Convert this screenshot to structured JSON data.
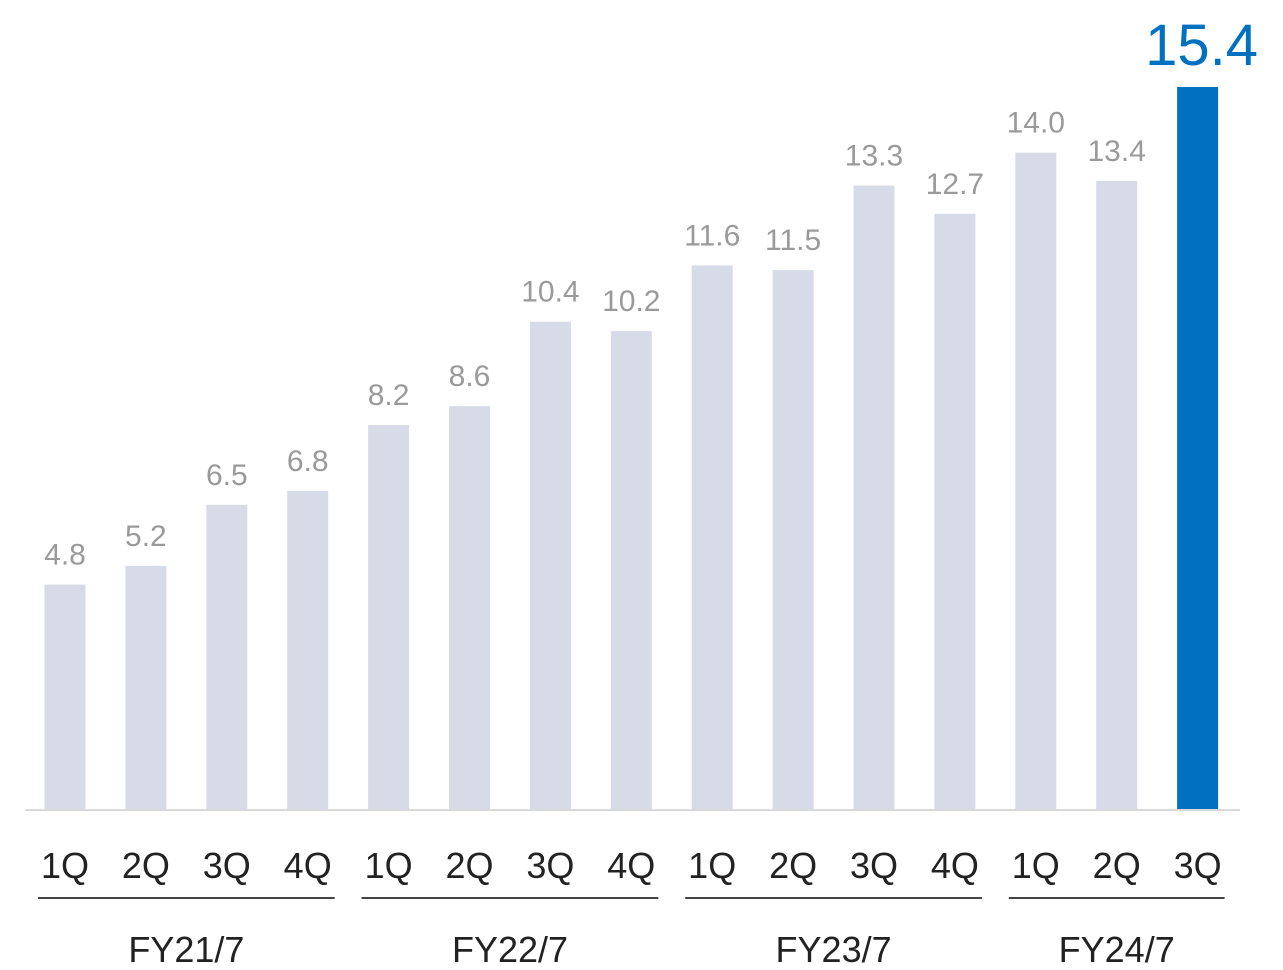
{
  "chart_data": {
    "type": "bar",
    "categories": [
      "1Q",
      "2Q",
      "3Q",
      "4Q",
      "1Q",
      "2Q",
      "3Q",
      "4Q",
      "1Q",
      "2Q",
      "3Q",
      "4Q",
      "1Q",
      "2Q",
      "3Q"
    ],
    "values": [
      4.8,
      5.2,
      6.5,
      6.8,
      8.2,
      8.6,
      10.4,
      10.2,
      11.6,
      11.5,
      13.3,
      12.7,
      14.0,
      13.4,
      15.4
    ],
    "value_labels": [
      "4.8",
      "5.2",
      "6.5",
      "6.8",
      "8.2",
      "8.6",
      "10.4",
      "10.2",
      "11.6",
      "11.5",
      "13.3",
      "12.7",
      "14.0",
      "13.4",
      "15.4"
    ],
    "groups": [
      {
        "label": "FY21/7",
        "count": 4
      },
      {
        "label": "FY22/7",
        "count": 4
      },
      {
        "label": "FY23/7",
        "count": 4
      },
      {
        "label": "FY24/7",
        "count": 3
      }
    ],
    "highlight_index": 14,
    "ylim": [
      0,
      15.4
    ],
    "grid": false,
    "colors": {
      "bar": "#d7dbe8",
      "highlight": "#0070c0",
      "value_label": "#9a9a9a",
      "axis": "#d9d9d9",
      "text": "#222222"
    }
  }
}
